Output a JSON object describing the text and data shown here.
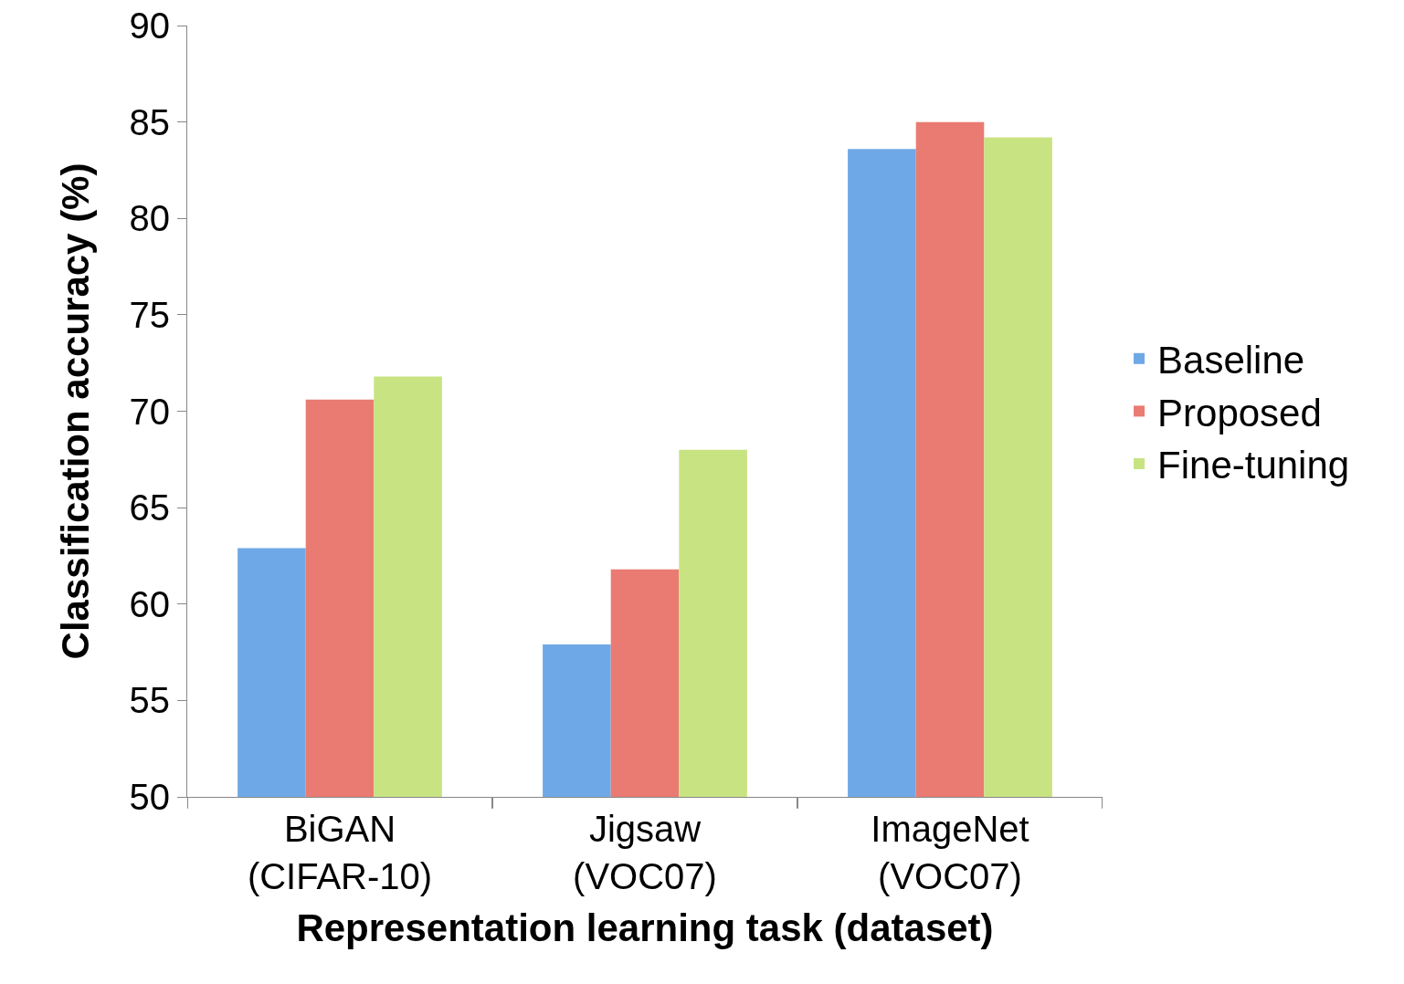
{
  "chart_data": {
    "type": "bar",
    "xlabel": "Representation learning task (dataset)",
    "ylabel": "Classification accuracy (%)",
    "categories": [
      "BiGAN\n(CIFAR-10)",
      "Jigsaw\n(VOC07)",
      "ImageNet\n(VOC07)"
    ],
    "series": [
      {
        "name": "Baseline",
        "color": "#6fa8e6",
        "values": [
          62.9,
          57.9,
          83.6
        ]
      },
      {
        "name": "Proposed",
        "color": "#ea7b72",
        "values": [
          70.6,
          61.8,
          85.0
        ]
      },
      {
        "name": "Fine-tuning",
        "color": "#c8e382",
        "values": [
          71.8,
          68.0,
          84.2
        ]
      }
    ],
    "ylim": [
      50,
      90
    ],
    "yticks": [
      50,
      55,
      60,
      65,
      70,
      75,
      80,
      85,
      90
    ],
    "grid": false,
    "legend": "right"
  }
}
